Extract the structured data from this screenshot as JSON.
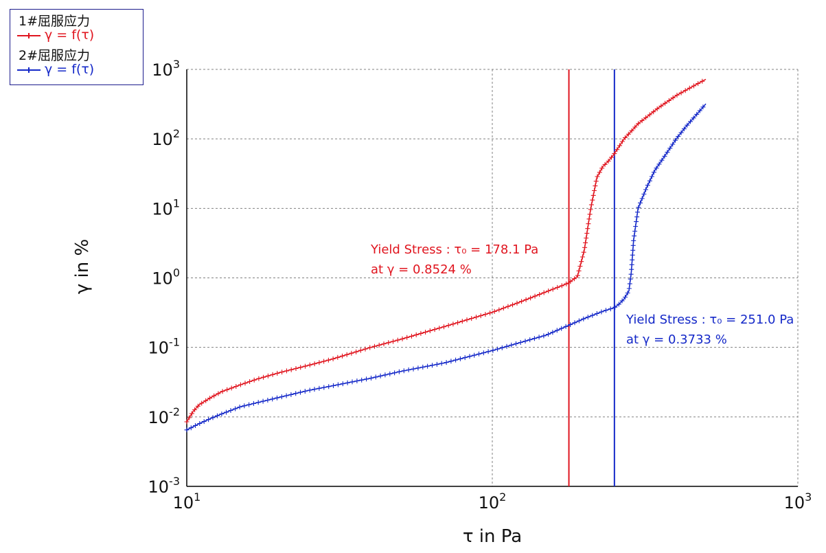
{
  "legend": {
    "series1_title": "1#屈服应力",
    "series1_label": "γ = f(τ)",
    "series2_title": "2#屈服应力",
    "series2_label": "γ = f(τ)"
  },
  "chart_data": {
    "type": "line",
    "xlabel": "τ in Pa",
    "ylabel": "γ in %",
    "xscale": "log",
    "yscale": "log",
    "xlim": [
      10,
      1000
    ],
    "ylim": [
      0.001,
      1000
    ],
    "x_ticks": [
      {
        "base": "10",
        "exp": "1"
      },
      {
        "base": "10",
        "exp": "2"
      },
      {
        "base": "10",
        "exp": "3"
      }
    ],
    "y_ticks": [
      {
        "base": "10",
        "exp": "-3"
      },
      {
        "base": "10",
        "exp": "-2"
      },
      {
        "base": "10",
        "exp": "-1"
      },
      {
        "base": "10",
        "exp": "0"
      },
      {
        "base": "10",
        "exp": "1"
      },
      {
        "base": "10",
        "exp": "2"
      },
      {
        "base": "10",
        "exp": "3"
      }
    ],
    "grid": true,
    "legend_position": "top-left",
    "series": [
      {
        "color": "#e0141e",
        "x": [
          10,
          10.5,
          11,
          12,
          13,
          15,
          17,
          20,
          25,
          30,
          40,
          50,
          70,
          100,
          120,
          150,
          170,
          178.1,
          190,
          200,
          210,
          220,
          230,
          240,
          250,
          270,
          300,
          350,
          400,
          450,
          500
        ],
        "y": [
          0.0085,
          0.012,
          0.015,
          0.019,
          0.023,
          0.029,
          0.035,
          0.043,
          0.055,
          0.068,
          0.1,
          0.13,
          0.2,
          0.32,
          0.43,
          0.63,
          0.78,
          0.8524,
          1.05,
          2.5,
          10,
          28,
          40,
          48,
          60,
          100,
          165,
          280,
          420,
          560,
          720
        ]
      },
      {
        "color": "#1428c8",
        "x": [
          10,
          11,
          12,
          13,
          15,
          17,
          20,
          25,
          30,
          40,
          50,
          70,
          100,
          150,
          200,
          230,
          251.0,
          260,
          270,
          280,
          285,
          290,
          300,
          320,
          340,
          370,
          400,
          430,
          460,
          480,
          500
        ],
        "y": [
          0.0065,
          0.008,
          0.0095,
          0.011,
          0.014,
          0.016,
          0.019,
          0.024,
          0.028,
          0.036,
          0.045,
          0.06,
          0.09,
          0.15,
          0.26,
          0.33,
          0.3733,
          0.42,
          0.5,
          0.65,
          1.2,
          3.5,
          10,
          20,
          35,
          60,
          100,
          150,
          210,
          260,
          320
        ]
      }
    ],
    "yield_lines": [
      {
        "color": "#e0141e",
        "x": 178.1
      },
      {
        "color": "#1428c8",
        "x": 251.0
      }
    ],
    "annotations": [
      {
        "color": "#e0141e",
        "line1": "Yield Stress : τ₀  = 178.1 Pa",
        "line2": "at  γ = 0.8524 %"
      },
      {
        "color": "#1428c8",
        "line1": "Yield Stress : τ₀  = 251.0 Pa",
        "line2": "at  γ = 0.3733 %"
      }
    ]
  }
}
